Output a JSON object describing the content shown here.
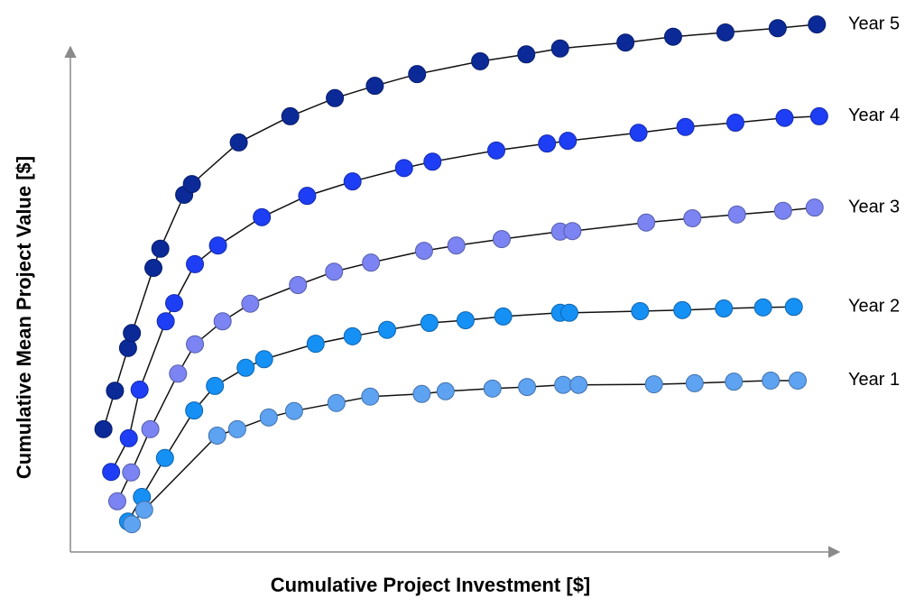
{
  "chart_data": {
    "type": "scatter",
    "xlabel": "Cumulative Project Investment [$]",
    "ylabel": "Cumulative Mean Project Value [$]",
    "xlim": [
      0,
      100
    ],
    "ylim": [
      0,
      100
    ],
    "series": [
      {
        "name": "Year 5",
        "color": "#0b2a98",
        "x": [
          4.3,
          5.8,
          7.5,
          8.0,
          10.8,
          11.7,
          14.8,
          15.8,
          21.9,
          28.6,
          34.4,
          39.6,
          45.1,
          53.3,
          59.3,
          63.7,
          72.2,
          78.4,
          85.2,
          92.0,
          97.1
        ],
        "values": [
          23.0,
          30.2,
          38.2,
          41.0,
          53.2,
          56.8,
          66.9,
          68.9,
          76.7,
          81.6,
          85.0,
          87.3,
          89.5,
          91.9,
          93.2,
          94.3,
          95.4,
          96.5,
          97.3,
          98.1,
          98.8
        ]
      },
      {
        "name": "Year 4",
        "color": "#1e3ef5",
        "x": [
          5.3,
          7.6,
          9.0,
          12.4,
          13.5,
          16.2,
          19.2,
          24.9,
          30.8,
          36.7,
          43.4,
          47.1,
          55.4,
          62.0,
          64.7,
          73.9,
          80.0,
          86.5,
          92.9,
          97.4
        ],
        "values": [
          15.0,
          21.3,
          30.4,
          43.2,
          46.6,
          53.9,
          57.4,
          62.7,
          66.7,
          69.4,
          71.9,
          73.1,
          75.2,
          76.5,
          77.0,
          78.5,
          79.6,
          80.4,
          81.3,
          81.6
        ]
      },
      {
        "name": "Year 3",
        "color": "#7b84f2",
        "x": [
          6.1,
          7.9,
          10.4,
          14.0,
          16.2,
          19.8,
          23.4,
          29.6,
          34.3,
          39.1,
          46.0,
          50.2,
          56.1,
          63.7,
          65.3,
          74.9,
          80.9,
          86.7,
          92.7,
          96.8
        ],
        "values": [
          9.5,
          14.9,
          23.0,
          33.4,
          38.9,
          43.2,
          46.5,
          50.0,
          52.5,
          54.2,
          56.4,
          57.4,
          58.6,
          60.0,
          60.1,
          61.7,
          62.5,
          63.2,
          63.9,
          64.5
        ]
      },
      {
        "name": "Year 2",
        "color": "#1590f5",
        "x": [
          7.5,
          9.3,
          12.3,
          16.1,
          18.8,
          22.8,
          25.2,
          31.9,
          36.7,
          41.2,
          46.7,
          51.4,
          56.3,
          63.7,
          64.9,
          74.1,
          79.6,
          85.0,
          90.1,
          94.1
        ],
        "values": [
          5.7,
          10.3,
          17.6,
          26.5,
          31.1,
          34.5,
          36.1,
          39.0,
          40.4,
          41.6,
          42.9,
          43.4,
          44.1,
          44.8,
          44.8,
          45.1,
          45.3,
          45.6,
          45.8,
          45.9
        ]
      },
      {
        "name": "Year 1",
        "color": "#5ea2f2",
        "x": [
          8.0,
          9.6,
          19.1,
          21.7,
          25.8,
          29.1,
          34.6,
          39.0,
          45.7,
          48.8,
          54.9,
          59.4,
          64.1,
          66.1,
          75.9,
          81.2,
          86.3,
          91.1,
          94.6
        ],
        "values": [
          5.2,
          7.9,
          21.8,
          23.0,
          25.2,
          26.4,
          27.9,
          29.1,
          29.6,
          30.1,
          30.6,
          30.9,
          31.3,
          31.3,
          31.4,
          31.6,
          31.9,
          32.1,
          32.1
        ]
      }
    ]
  }
}
